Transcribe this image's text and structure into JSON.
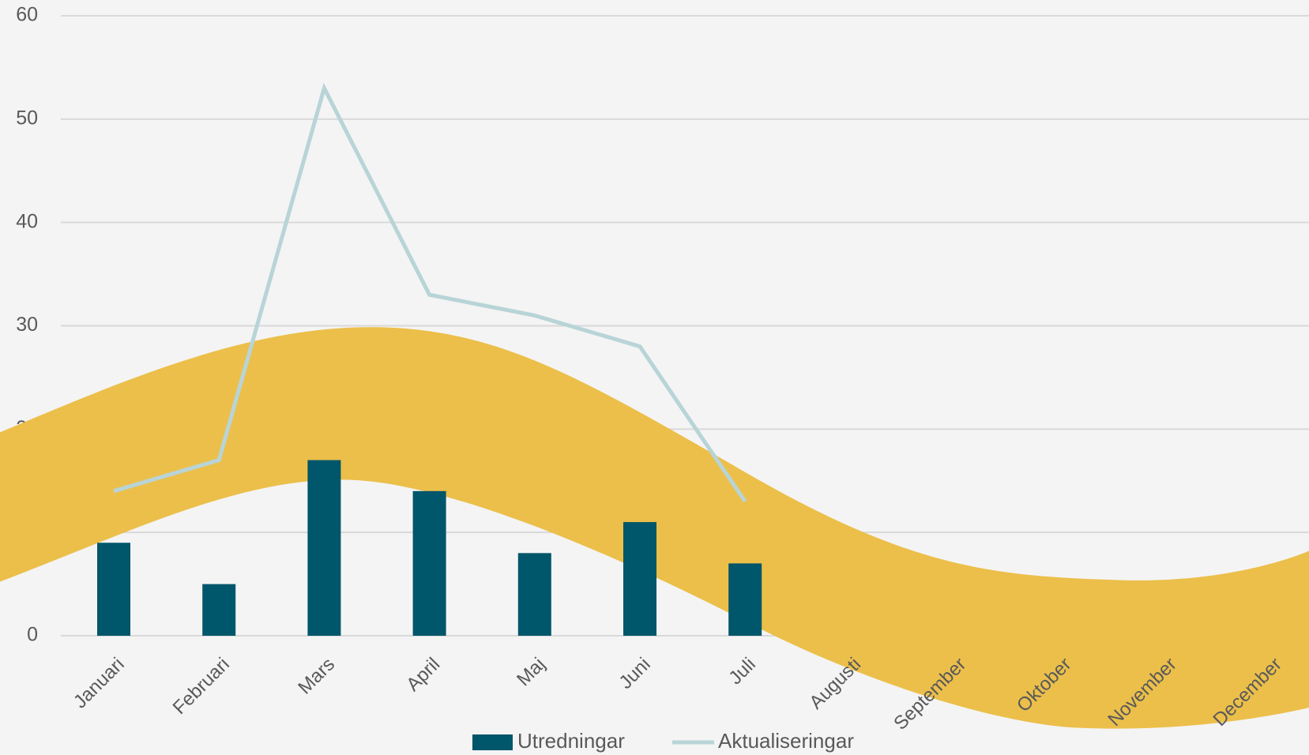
{
  "chart_data": {
    "type": "bar",
    "categories": [
      "Januari",
      "Februari",
      "Mars",
      "April",
      "Maj",
      "Juni",
      "Juli",
      "Augusti",
      "September",
      "Oktober",
      "November",
      "December"
    ],
    "series": [
      {
        "name": "Utredningar",
        "type": "bar",
        "color": "#00566a",
        "values": [
          9,
          5,
          17,
          14,
          8,
          11,
          7,
          null,
          null,
          null,
          null,
          null
        ]
      },
      {
        "name": "Aktualiseringar",
        "type": "line",
        "color": "#b8d4d7",
        "values": [
          14,
          17,
          53,
          33,
          31,
          28,
          13,
          null,
          null,
          null,
          null,
          null
        ]
      }
    ],
    "ylim": [
      0,
      60
    ],
    "yticks": [
      0,
      10,
      20,
      30,
      40,
      50,
      60
    ],
    "grid": true,
    "legend": "bottom"
  }
}
